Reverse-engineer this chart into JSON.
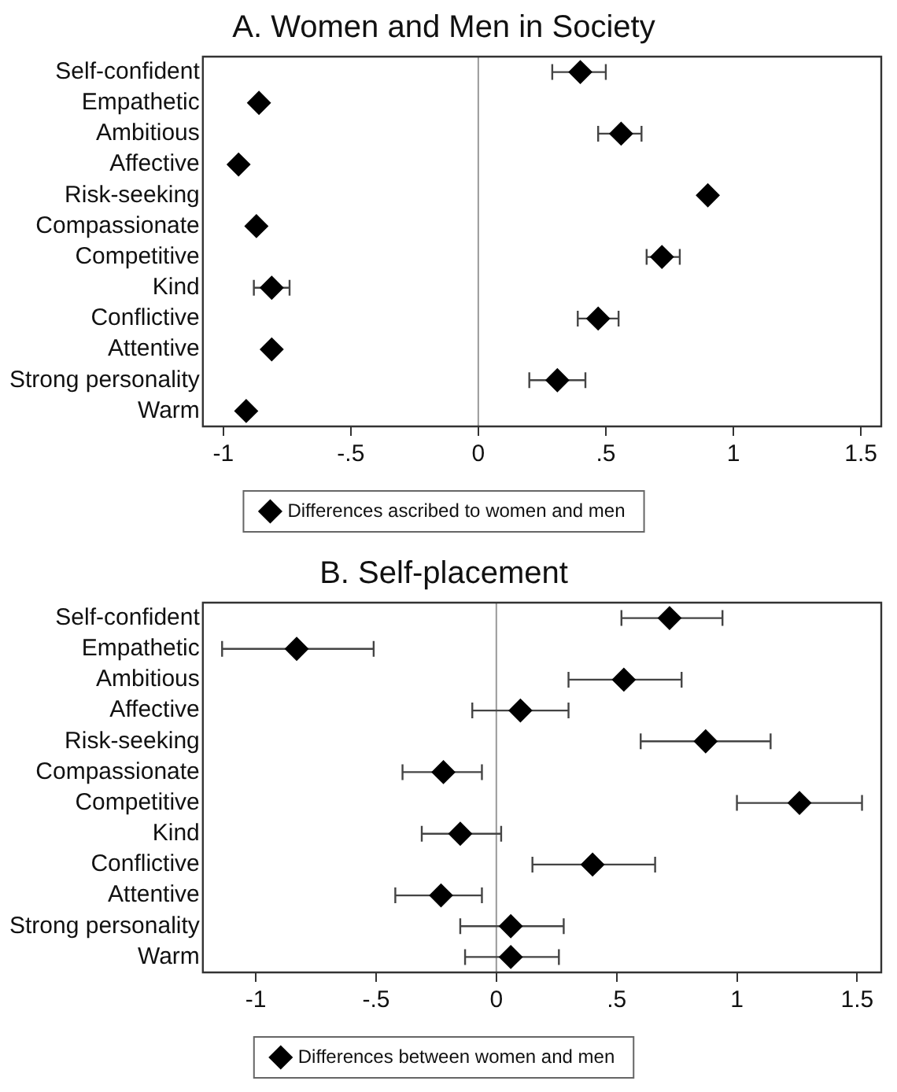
{
  "chart_data": [
    {
      "type": "scatter",
      "orientation": "horizontal",
      "title": "A. Women and Men in Society",
      "categories": [
        "Self-confident",
        "Empathetic",
        "Ambitious",
        "Affective",
        "Risk-seeking",
        "Compassionate",
        "Competitive",
        "Kind",
        "Conflictive",
        "Attentive",
        "Strong personality",
        "Warm"
      ],
      "series": [
        {
          "name": "Differences ascribed to women and men",
          "color": "#000000",
          "values": [
            0.4,
            -0.86,
            0.56,
            -0.94,
            0.9,
            -0.87,
            0.72,
            -0.81,
            0.47,
            -0.81,
            0.31,
            -0.91
          ],
          "errors": [
            [
              0.29,
              0.5
            ],
            null,
            [
              0.47,
              0.64
            ],
            null,
            null,
            null,
            [
              0.66,
              0.79
            ],
            [
              -0.88,
              -0.74
            ],
            [
              0.39,
              0.55
            ],
            null,
            [
              0.2,
              0.42
            ],
            null
          ]
        }
      ],
      "xlim": [
        -1.08,
        1.58
      ],
      "xticks": [
        {
          "value": -1,
          "label": "-1"
        },
        {
          "value": -0.5,
          "label": "-.5"
        },
        0,
        {
          "value": 0.5,
          "label": ".5"
        },
        1,
        1.5
      ],
      "ref_lines": [
        {
          "axis": "x",
          "value": 0,
          "color": "#999999"
        }
      ],
      "marker": "diamond",
      "legend": "bottom",
      "grid": false
    },
    {
      "type": "scatter",
      "orientation": "horizontal",
      "title": "B. Self-placement",
      "categories": [
        "Self-confident",
        "Empathetic",
        "Ambitious",
        "Affective",
        "Risk-seeking",
        "Compassionate",
        "Competitive",
        "Kind",
        "Conflictive",
        "Attentive",
        "Strong personality",
        "Warm"
      ],
      "series": [
        {
          "name": "Differences between women and men",
          "color": "#000000",
          "values": [
            0.72,
            -0.83,
            0.53,
            0.1,
            0.87,
            -0.22,
            1.26,
            -0.15,
            0.4,
            -0.23,
            0.06,
            0.06
          ],
          "errors": [
            [
              0.52,
              0.94
            ],
            [
              -1.14,
              -0.51
            ],
            [
              0.3,
              0.77
            ],
            [
              -0.1,
              0.3
            ],
            [
              0.6,
              1.14
            ],
            [
              -0.39,
              -0.06
            ],
            [
              1.0,
              1.52
            ],
            [
              -0.31,
              0.02
            ],
            [
              0.15,
              0.66
            ],
            [
              -0.42,
              -0.06
            ],
            [
              -0.15,
              0.28
            ],
            [
              -0.13,
              0.26
            ]
          ]
        }
      ],
      "xlim": [
        -1.22,
        1.6
      ],
      "xticks": [
        {
          "value": -1,
          "label": "-1"
        },
        {
          "value": -0.5,
          "label": "-.5"
        },
        0,
        {
          "value": 0.5,
          "label": ".5"
        },
        1,
        1.5
      ],
      "ref_lines": [
        {
          "axis": "x",
          "value": 0,
          "color": "#999999"
        }
      ],
      "marker": "diamond",
      "legend": "bottom",
      "grid": false
    }
  ]
}
